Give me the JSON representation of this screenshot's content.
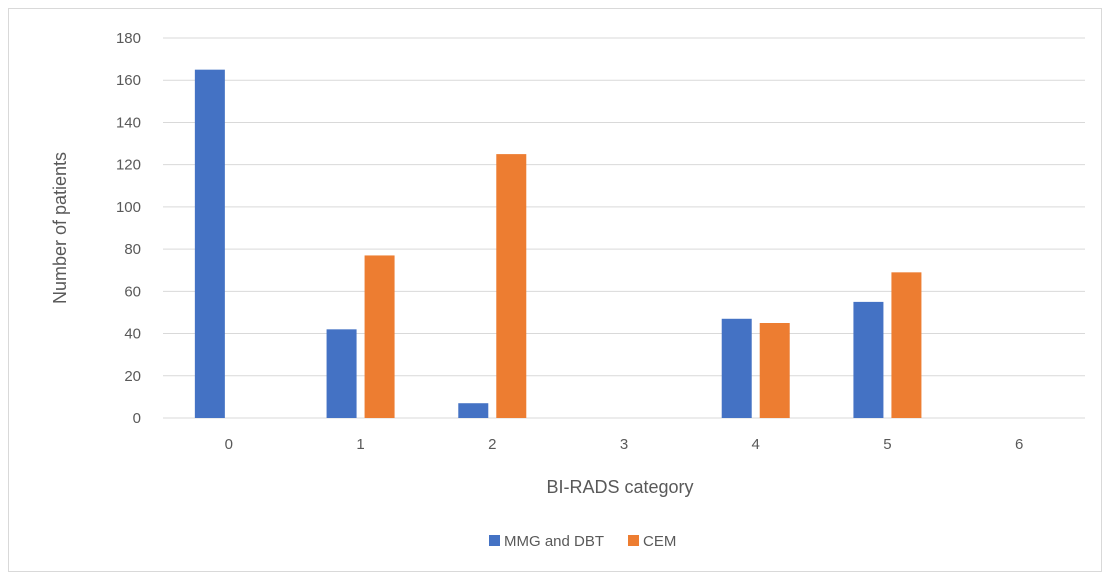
{
  "chart_data": {
    "type": "bar",
    "title": "",
    "xlabel": "BI-RADS category",
    "ylabel": "Number of patients",
    "categories": [
      "0",
      "1",
      "2",
      "3",
      "4",
      "5",
      "6"
    ],
    "series": [
      {
        "name": "MMG and DBT",
        "color": "#4472c4",
        "values": [
          165,
          42,
          7,
          0,
          47,
          55,
          0
        ]
      },
      {
        "name": "CEM",
        "color": "#ed7d31",
        "values": [
          0,
          77,
          125,
          0,
          45,
          69,
          0
        ]
      }
    ],
    "ylim": [
      0,
      180
    ],
    "yticks": [
      0,
      20,
      40,
      60,
      80,
      100,
      120,
      140,
      160,
      180
    ],
    "grid": true,
    "legend_position": "bottom"
  }
}
